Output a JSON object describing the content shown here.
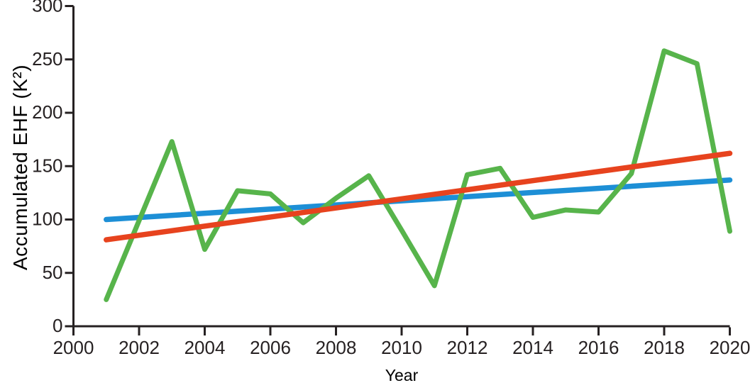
{
  "chart_data": {
    "type": "line",
    "title": "",
    "xlabel": "Year",
    "ylabel": "Accumulated EHF (K²)",
    "xlim": [
      2000,
      2020
    ],
    "ylim": [
      0,
      300
    ],
    "x_ticks": [
      2000,
      2002,
      2004,
      2006,
      2008,
      2010,
      2012,
      2014,
      2016,
      2018,
      2020
    ],
    "y_ticks": [
      0,
      50,
      100,
      150,
      200,
      250,
      300
    ],
    "grid": false,
    "legend": "none",
    "background": "#ffffff",
    "axis_color": "#262122",
    "text_color": "#262122",
    "series": [
      {
        "name": "trend-line-blue",
        "role": "linear-trend",
        "color": "#1d8fd6",
        "width": 7.5,
        "x": [
          2001,
          2020
        ],
        "values": [
          100,
          137
        ]
      },
      {
        "name": "accumulated-ehf-annual",
        "role": "data",
        "color": "#57b44b",
        "width": 7,
        "x": [
          2001,
          2002,
          2003,
          2004,
          2005,
          2006,
          2007,
          2008,
          2009,
          2010,
          2011,
          2012,
          2013,
          2014,
          2015,
          2016,
          2017,
          2018,
          2019,
          2020
        ],
        "values": [
          25,
          99,
          173,
          72,
          127,
          124,
          97,
          120,
          141,
          90,
          38,
          142,
          148,
          102,
          109,
          107,
          143,
          258,
          246,
          89
        ]
      },
      {
        "name": "trend-line-red",
        "role": "linear-trend",
        "color": "#e7431e",
        "width": 7.5,
        "x": [
          2001,
          2020
        ],
        "values": [
          81,
          162
        ]
      }
    ]
  }
}
